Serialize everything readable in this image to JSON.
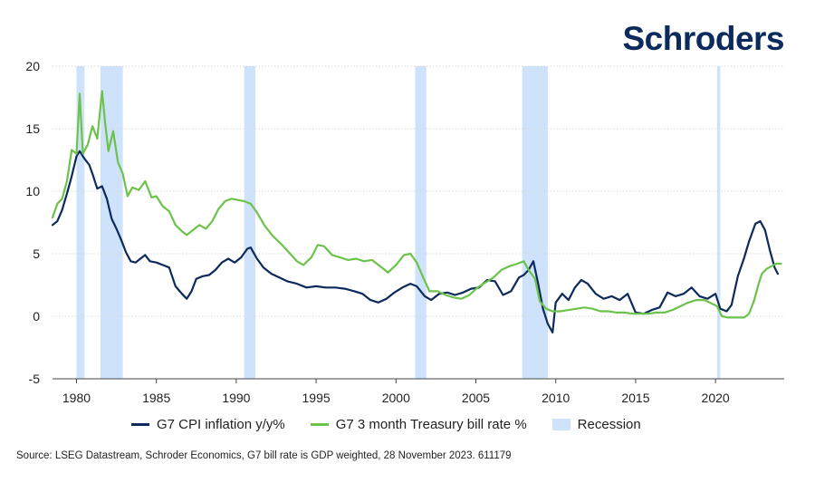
{
  "brand": {
    "logo_text": "Schroders"
  },
  "source_note": "Source: LSEG Datastream, Schroder Economics, G7 bill rate is GDP weighted, 28 November 2023. 611179",
  "colors": {
    "cpi": "#0c2a5c",
    "tbill": "#6cc24a",
    "recession": "#cfe2fb",
    "grid": "#d9d9d9"
  },
  "chart_data": {
    "type": "line",
    "title": "",
    "xlabel": "",
    "ylabel": "",
    "xlim": [
      1978.5,
      2024.3
    ],
    "ylim": [
      -5,
      20
    ],
    "x_ticks": [
      1980,
      1985,
      1990,
      1995,
      2000,
      2005,
      2010,
      2015,
      2020
    ],
    "x_tick_labels": [
      "1980",
      "1985",
      "1990",
      "1995",
      "2000",
      "2005",
      "2010",
      "2015",
      "2020"
    ],
    "y_ticks": [
      -5,
      0,
      5,
      10,
      15,
      20
    ],
    "y_tick_labels": [
      "-5",
      "0",
      "5",
      "10",
      "15",
      "20"
    ],
    "grid": "horizontal",
    "legend_position": "bottom",
    "legend": [
      {
        "label": "G7 CPI inflation y/y%",
        "kind": "line",
        "color": "#0c2a5c"
      },
      {
        "label": "G7 3 month Treasury bill rate %",
        "kind": "line",
        "color": "#6cc24a"
      },
      {
        "label": "Recession",
        "kind": "box",
        "color": "#cfe2fb"
      }
    ],
    "recessions": [
      [
        1980.0,
        1980.5
      ],
      [
        1981.5,
        1982.9
      ],
      [
        1990.5,
        1991.2
      ],
      [
        2001.2,
        2001.9
      ],
      [
        2007.9,
        2009.5
      ],
      [
        2020.1,
        2020.3
      ]
    ],
    "series": [
      {
        "name": "G7 CPI inflation y/y%",
        "color": "#0c2a5c",
        "points": [
          [
            1978.5,
            7.3
          ],
          [
            1978.8,
            7.6
          ],
          [
            1979.1,
            8.5
          ],
          [
            1979.4,
            9.8
          ],
          [
            1979.7,
            11.2
          ],
          [
            1980.0,
            12.8
          ],
          [
            1980.2,
            13.2
          ],
          [
            1980.5,
            12.6
          ],
          [
            1980.8,
            12.1
          ],
          [
            1981.0,
            11.4
          ],
          [
            1981.3,
            10.2
          ],
          [
            1981.6,
            10.4
          ],
          [
            1981.9,
            9.4
          ],
          [
            1982.2,
            7.8
          ],
          [
            1982.5,
            7.0
          ],
          [
            1982.8,
            6.1
          ],
          [
            1983.1,
            5.1
          ],
          [
            1983.4,
            4.4
          ],
          [
            1983.7,
            4.3
          ],
          [
            1984.0,
            4.6
          ],
          [
            1984.3,
            4.9
          ],
          [
            1984.6,
            4.4
          ],
          [
            1985.0,
            4.3
          ],
          [
            1985.4,
            4.1
          ],
          [
            1985.8,
            3.9
          ],
          [
            1986.2,
            2.4
          ],
          [
            1986.6,
            1.8
          ],
          [
            1986.9,
            1.4
          ],
          [
            1987.2,
            2.0
          ],
          [
            1987.5,
            3.0
          ],
          [
            1987.9,
            3.2
          ],
          [
            1988.3,
            3.3
          ],
          [
            1988.7,
            3.7
          ],
          [
            1989.1,
            4.3
          ],
          [
            1989.5,
            4.6
          ],
          [
            1989.9,
            4.3
          ],
          [
            1990.3,
            4.7
          ],
          [
            1990.7,
            5.4
          ],
          [
            1990.9,
            5.5
          ],
          [
            1991.3,
            4.6
          ],
          [
            1991.7,
            3.9
          ],
          [
            1992.2,
            3.4
          ],
          [
            1992.7,
            3.1
          ],
          [
            1993.2,
            2.8
          ],
          [
            1993.8,
            2.6
          ],
          [
            1994.4,
            2.3
          ],
          [
            1995.0,
            2.4
          ],
          [
            1995.6,
            2.3
          ],
          [
            1996.2,
            2.3
          ],
          [
            1996.8,
            2.2
          ],
          [
            1997.4,
            2.0
          ],
          [
            1997.9,
            1.8
          ],
          [
            1998.4,
            1.3
          ],
          [
            1998.9,
            1.1
          ],
          [
            1999.4,
            1.4
          ],
          [
            1999.9,
            1.9
          ],
          [
            2000.4,
            2.3
          ],
          [
            2000.9,
            2.6
          ],
          [
            2001.3,
            2.4
          ],
          [
            2001.8,
            1.6
          ],
          [
            2002.2,
            1.3
          ],
          [
            2002.7,
            1.8
          ],
          [
            2003.2,
            1.9
          ],
          [
            2003.7,
            1.7
          ],
          [
            2004.2,
            1.9
          ],
          [
            2004.7,
            2.2
          ],
          [
            2005.2,
            2.3
          ],
          [
            2005.7,
            2.9
          ],
          [
            2006.2,
            2.8
          ],
          [
            2006.7,
            1.7
          ],
          [
            2007.2,
            2.0
          ],
          [
            2007.7,
            3.1
          ],
          [
            2008.0,
            3.3
          ],
          [
            2008.3,
            3.7
          ],
          [
            2008.6,
            4.4
          ],
          [
            2008.9,
            2.6
          ],
          [
            2009.2,
            0.6
          ],
          [
            2009.5,
            -0.6
          ],
          [
            2009.8,
            -1.3
          ],
          [
            2010.0,
            1.1
          ],
          [
            2010.4,
            1.8
          ],
          [
            2010.8,
            1.3
          ],
          [
            2011.2,
            2.3
          ],
          [
            2011.6,
            2.9
          ],
          [
            2012.0,
            2.6
          ],
          [
            2012.5,
            1.8
          ],
          [
            2013.0,
            1.4
          ],
          [
            2013.5,
            1.6
          ],
          [
            2014.0,
            1.3
          ],
          [
            2014.5,
            1.8
          ],
          [
            2015.0,
            0.3
          ],
          [
            2015.5,
            0.2
          ],
          [
            2016.0,
            0.5
          ],
          [
            2016.5,
            0.7
          ],
          [
            2017.0,
            1.9
          ],
          [
            2017.5,
            1.6
          ],
          [
            2018.0,
            1.8
          ],
          [
            2018.5,
            2.3
          ],
          [
            2019.0,
            1.6
          ],
          [
            2019.5,
            1.4
          ],
          [
            2020.0,
            1.8
          ],
          [
            2020.3,
            0.6
          ],
          [
            2020.7,
            0.4
          ],
          [
            2021.0,
            0.9
          ],
          [
            2021.4,
            3.2
          ],
          [
            2021.8,
            4.7
          ],
          [
            2022.1,
            6.0
          ],
          [
            2022.5,
            7.4
          ],
          [
            2022.8,
            7.6
          ],
          [
            2023.1,
            6.9
          ],
          [
            2023.4,
            5.3
          ],
          [
            2023.7,
            3.9
          ],
          [
            2023.9,
            3.4
          ]
        ]
      },
      {
        "name": "G7 3 month Treasury bill rate %",
        "color": "#6cc24a",
        "points": [
          [
            1978.5,
            7.9
          ],
          [
            1978.8,
            9.0
          ],
          [
            1979.1,
            9.4
          ],
          [
            1979.4,
            10.8
          ],
          [
            1979.7,
            13.3
          ],
          [
            1980.0,
            13.0
          ],
          [
            1980.2,
            17.8
          ],
          [
            1980.4,
            13.0
          ],
          [
            1980.7,
            13.7
          ],
          [
            1981.0,
            15.2
          ],
          [
            1981.3,
            14.2
          ],
          [
            1981.6,
            18.0
          ],
          [
            1981.8,
            15.4
          ],
          [
            1982.0,
            13.2
          ],
          [
            1982.3,
            14.8
          ],
          [
            1982.6,
            12.3
          ],
          [
            1982.9,
            11.4
          ],
          [
            1983.2,
            9.6
          ],
          [
            1983.5,
            10.3
          ],
          [
            1983.9,
            10.1
          ],
          [
            1984.3,
            10.8
          ],
          [
            1984.7,
            9.5
          ],
          [
            1985.0,
            9.6
          ],
          [
            1985.4,
            8.8
          ],
          [
            1985.8,
            8.4
          ],
          [
            1986.2,
            7.3
          ],
          [
            1986.6,
            6.8
          ],
          [
            1986.9,
            6.5
          ],
          [
            1987.3,
            6.9
          ],
          [
            1987.7,
            7.3
          ],
          [
            1988.1,
            7.0
          ],
          [
            1988.5,
            7.6
          ],
          [
            1988.9,
            8.6
          ],
          [
            1989.3,
            9.2
          ],
          [
            1989.7,
            9.4
          ],
          [
            1990.1,
            9.3
          ],
          [
            1990.5,
            9.2
          ],
          [
            1990.9,
            9.0
          ],
          [
            1991.3,
            8.3
          ],
          [
            1991.8,
            7.2
          ],
          [
            1992.3,
            6.4
          ],
          [
            1992.8,
            5.8
          ],
          [
            1993.3,
            5.1
          ],
          [
            1993.8,
            4.4
          ],
          [
            1994.2,
            4.1
          ],
          [
            1994.7,
            4.7
          ],
          [
            1995.1,
            5.7
          ],
          [
            1995.5,
            5.6
          ],
          [
            1996.0,
            4.9
          ],
          [
            1996.5,
            4.7
          ],
          [
            1997.0,
            4.5
          ],
          [
            1997.5,
            4.6
          ],
          [
            1998.0,
            4.4
          ],
          [
            1998.5,
            4.5
          ],
          [
            1999.0,
            4.0
          ],
          [
            1999.5,
            3.5
          ],
          [
            2000.0,
            4.1
          ],
          [
            2000.5,
            4.9
          ],
          [
            2000.9,
            5.0
          ],
          [
            2001.3,
            4.3
          ],
          [
            2001.7,
            3.1
          ],
          [
            2002.1,
            2.0
          ],
          [
            2002.6,
            2.0
          ],
          [
            2003.1,
            1.7
          ],
          [
            2003.6,
            1.5
          ],
          [
            2004.1,
            1.4
          ],
          [
            2004.6,
            1.7
          ],
          [
            2005.1,
            2.3
          ],
          [
            2005.6,
            2.7
          ],
          [
            2006.1,
            3.1
          ],
          [
            2006.6,
            3.7
          ],
          [
            2007.1,
            4.0
          ],
          [
            2007.6,
            4.2
          ],
          [
            2008.0,
            4.4
          ],
          [
            2008.3,
            3.7
          ],
          [
            2008.7,
            3.0
          ],
          [
            2009.0,
            1.2
          ],
          [
            2009.4,
            0.6
          ],
          [
            2009.8,
            0.4
          ],
          [
            2010.3,
            0.4
          ],
          [
            2010.8,
            0.5
          ],
          [
            2011.3,
            0.6
          ],
          [
            2011.8,
            0.7
          ],
          [
            2012.3,
            0.6
          ],
          [
            2012.8,
            0.4
          ],
          [
            2013.3,
            0.4
          ],
          [
            2013.8,
            0.3
          ],
          [
            2014.3,
            0.3
          ],
          [
            2014.8,
            0.2
          ],
          [
            2015.3,
            0.2
          ],
          [
            2015.8,
            0.2
          ],
          [
            2016.3,
            0.3
          ],
          [
            2016.8,
            0.3
          ],
          [
            2017.3,
            0.5
          ],
          [
            2017.8,
            0.8
          ],
          [
            2018.3,
            1.1
          ],
          [
            2018.8,
            1.3
          ],
          [
            2019.3,
            1.3
          ],
          [
            2019.8,
            1.0
          ],
          [
            2020.1,
            0.8
          ],
          [
            2020.4,
            0.0
          ],
          [
            2020.8,
            -0.1
          ],
          [
            2021.3,
            -0.1
          ],
          [
            2021.8,
            -0.1
          ],
          [
            2022.1,
            0.2
          ],
          [
            2022.4,
            1.2
          ],
          [
            2022.7,
            2.6
          ],
          [
            2022.9,
            3.4
          ],
          [
            2023.2,
            3.8
          ],
          [
            2023.5,
            4.0
          ],
          [
            2023.8,
            4.2
          ],
          [
            2024.1,
            4.2
          ]
        ]
      }
    ]
  }
}
